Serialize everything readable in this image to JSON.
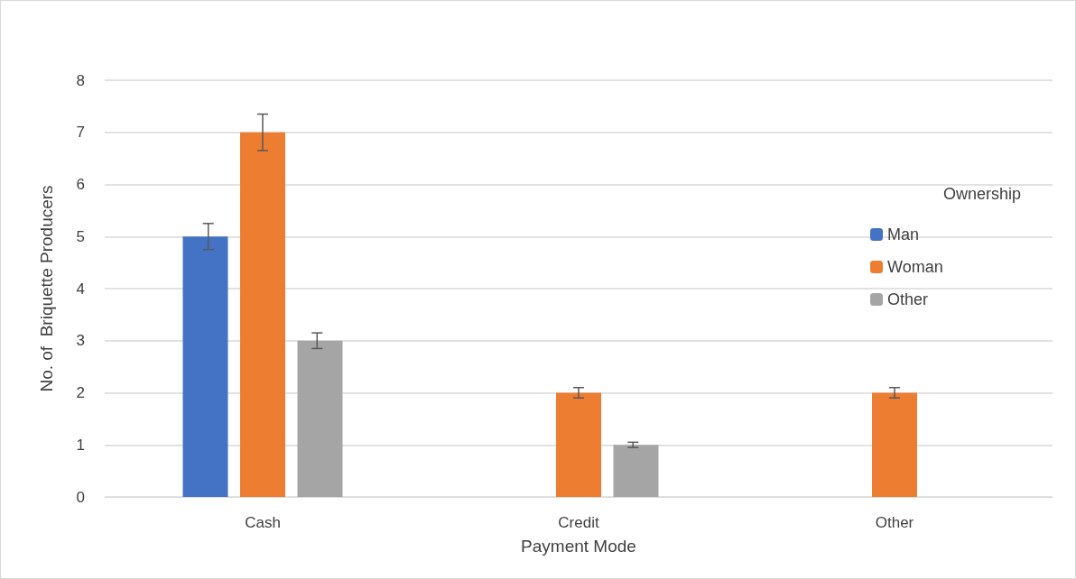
{
  "chart_data": {
    "type": "bar",
    "xlabel": "Payment Mode",
    "ylabel": "No. of  Briquette Producers",
    "legend_title": "Ownership",
    "categories": [
      "Cash",
      "Credit",
      "Other"
    ],
    "series": [
      {
        "name": "Man",
        "color": "#4472c4",
        "values": [
          5,
          null,
          null
        ],
        "errors": [
          0.25,
          null,
          null
        ]
      },
      {
        "name": "Woman",
        "color": "#ed7d31",
        "values": [
          7,
          2,
          2
        ],
        "errors": [
          0.35,
          0.1,
          0.1
        ]
      },
      {
        "name": "Other",
        "color": "#a5a5a5",
        "values": [
          3,
          1,
          null
        ],
        "errors": [
          0.15,
          0.05,
          null
        ]
      }
    ],
    "ylim": [
      0,
      8
    ],
    "yticks": [
      0,
      1,
      2,
      3,
      4,
      5,
      6,
      7,
      8
    ],
    "grid": "y",
    "legend": "right"
  }
}
